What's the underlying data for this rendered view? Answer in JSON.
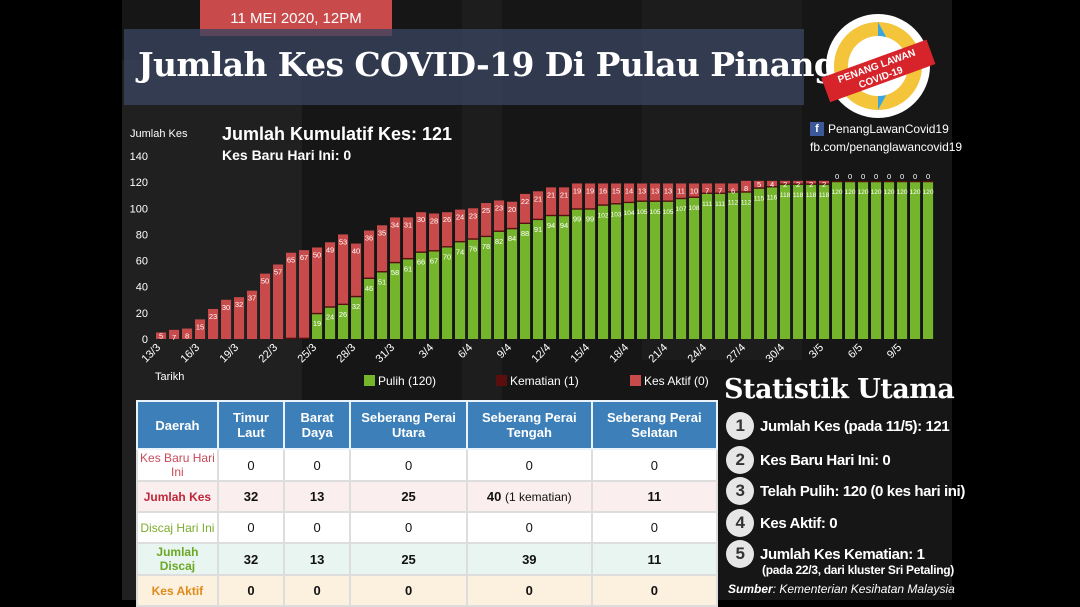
{
  "header": {
    "date": "11 MEI 2020, 12PM",
    "title": "Jumlah Kes COVID-19 Di Pulau Pinang"
  },
  "logo": {
    "line1": "PENANG LAWAN",
    "line2": "COVID-19"
  },
  "social": {
    "facebook": "PenangLawanCovid19",
    "url": "fb.com/penanglawancovid19"
  },
  "chart_info": {
    "cumulative": "Jumlah Kumulatif Kes: 121",
    "new_today": "Kes Baru Hari Ini: 0"
  },
  "chart_data": {
    "type": "bar",
    "stacked": true,
    "ylabel": "Jumlah Kes",
    "xlabel": "Tarikh",
    "ylim": [
      0,
      140
    ],
    "yticks": [
      0,
      20,
      40,
      60,
      80,
      100,
      120,
      140
    ],
    "grid": false,
    "legend_position": "bottom",
    "categories": [
      "13/3",
      "14/3",
      "15/3",
      "16/3",
      "17/3",
      "18/3",
      "19/3",
      "20/3",
      "21/3",
      "22/3",
      "23/3",
      "24/3",
      "25/3",
      "26/3",
      "27/3",
      "28/3",
      "29/3",
      "30/3",
      "31/3",
      "1/4",
      "2/4",
      "3/4",
      "4/4",
      "5/4",
      "6/4",
      "7/4",
      "8/4",
      "9/4",
      "10/4",
      "11/4",
      "12/4",
      "13/4",
      "14/4",
      "15/4",
      "16/4",
      "17/4",
      "18/4",
      "19/4",
      "20/4",
      "21/4",
      "22/4",
      "23/4",
      "24/4",
      "25/4",
      "26/4",
      "27/4",
      "28/4",
      "29/4",
      "30/4",
      "1/5",
      "2/5",
      "3/5",
      "4/5",
      "5/5",
      "6/5",
      "7/5",
      "8/5",
      "9/5",
      "10/5",
      "11/5"
    ],
    "tick_labels": [
      "13/3",
      "16/3",
      "19/3",
      "22/3",
      "25/3",
      "28/3",
      "31/3",
      "3/4",
      "6/4",
      "9/4",
      "12/4",
      "15/4",
      "18/4",
      "21/4",
      "24/4",
      "27/4",
      "30/4",
      "3/5",
      "6/5",
      "9/5"
    ],
    "series": [
      {
        "name": "Pulih (120)",
        "color": "#74b52c",
        "values": [
          0,
          0,
          0,
          0,
          0,
          0,
          0,
          0,
          0,
          0,
          0,
          0,
          19,
          24,
          26,
          32,
          46,
          51,
          58,
          61,
          66,
          67,
          70,
          74,
          76,
          78,
          82,
          84,
          88,
          91,
          94,
          94,
          99,
          99,
          102,
          103,
          104,
          105,
          105,
          105,
          107,
          108,
          111,
          111,
          112,
          112,
          115,
          116,
          118,
          118,
          118,
          118,
          120,
          120,
          120,
          120,
          120,
          120,
          120,
          120
        ]
      },
      {
        "name": "Kematian (1)",
        "color": "#5a0e0e",
        "values": [
          0,
          0,
          0,
          0,
          0,
          0,
          0,
          0,
          0,
          0,
          1,
          1,
          1,
          1,
          1,
          1,
          1,
          1,
          1,
          1,
          1,
          1,
          1,
          1,
          1,
          1,
          1,
          1,
          1,
          1,
          1,
          1,
          1,
          1,
          1,
          1,
          1,
          1,
          1,
          1,
          1,
          1,
          1,
          1,
          1,
          1,
          1,
          1,
          1,
          1,
          1,
          1,
          1,
          1,
          1,
          1,
          1,
          1,
          1,
          1
        ]
      },
      {
        "name": "Kes Aktif (0)",
        "color": "#c94a4a",
        "values": [
          5,
          7,
          8,
          15,
          23,
          30,
          32,
          37,
          50,
          57,
          65,
          67,
          50,
          49,
          53,
          40,
          36,
          35,
          34,
          31,
          30,
          28,
          26,
          24,
          23,
          25,
          23,
          20,
          22,
          21,
          21,
          21,
          19,
          19,
          16,
          15,
          14,
          13,
          13,
          13,
          11,
          10,
          7,
          7,
          6,
          8,
          5,
          4,
          2,
          2,
          2,
          2,
          0,
          0,
          0,
          0,
          0,
          0,
          0,
          0
        ]
      }
    ],
    "data_labels": {
      "green": [
        "",
        "",
        "",
        "",
        "",
        "",
        "",
        "",
        "",
        "",
        "",
        "",
        "19",
        "24",
        "26",
        "32",
        "46",
        "51",
        "58",
        "61",
        "66",
        "67",
        "70",
        "74",
        "76",
        "78",
        "82",
        "84",
        "88",
        "91",
        "94",
        "94",
        "99",
        "99",
        "102",
        "103",
        "104",
        "105",
        "105",
        "105",
        "107",
        "108",
        "111",
        "111",
        "112",
        "112",
        "115",
        "116",
        "118",
        "118",
        "118",
        "118",
        "120",
        "120",
        "120",
        "120",
        "120",
        "120",
        "120",
        "120"
      ],
      "red": [
        "5",
        "7",
        "8",
        "15",
        "23",
        "30",
        "32",
        "37",
        "50",
        "57",
        "65",
        "67",
        "50",
        "49",
        "53",
        "40",
        "36",
        "35",
        "34",
        "31",
        "30",
        "28",
        "26",
        "24",
        "23",
        "25",
        "23",
        "20",
        "22",
        "21",
        "21",
        "21",
        "19",
        "19",
        "16",
        "15",
        "14",
        "13",
        "13",
        "13",
        "11",
        "10",
        "7",
        "7",
        "6",
        "8",
        "5",
        "4",
        "2",
        "2",
        "2",
        "2",
        "0",
        "0",
        "0",
        "0",
        "0",
        "0",
        "0",
        "0"
      ]
    }
  },
  "table": {
    "headers": [
      "Daerah",
      "Timur Laut",
      "Barat Daya",
      "Seberang Perai Utara",
      "Seberang Perai Tengah",
      "Seberang Perai Selatan"
    ],
    "rows": [
      {
        "label": "Kes Baru Hari Ini",
        "values": [
          "0",
          "0",
          "0",
          "0",
          "0"
        ]
      },
      {
        "label": "Jumlah Kes",
        "values": [
          "32",
          "13",
          "25",
          "40",
          "11"
        ],
        "note": "(1 kematian)"
      },
      {
        "label": "Discaj Hari Ini",
        "values": [
          "0",
          "0",
          "0",
          "0",
          "0"
        ]
      },
      {
        "label": "Jumlah Discaj",
        "values": [
          "32",
          "13",
          "25",
          "39",
          "11"
        ]
      },
      {
        "label": "Kes Aktif",
        "values": [
          "0",
          "0",
          "0",
          "0",
          "0"
        ]
      }
    ]
  },
  "stats": {
    "heading": "Statistik Utama",
    "items": [
      {
        "n": "1",
        "text": "Jumlah Kes (pada 11/5): 121"
      },
      {
        "n": "2",
        "text": "Kes Baru Hari Ini: 0"
      },
      {
        "n": "3",
        "text": "Telah Pulih: 120 (0 kes hari ini)"
      },
      {
        "n": "4",
        "text": "Kes Aktif: 0"
      },
      {
        "n": "5",
        "text": "Jumlah Kes Kematian: 1"
      }
    ],
    "note5": "(pada 22/3, dari kluster Sri Petaling)"
  },
  "source": {
    "label": "Sumber",
    "text": ": Kementerian Kesihatan Malaysia"
  }
}
